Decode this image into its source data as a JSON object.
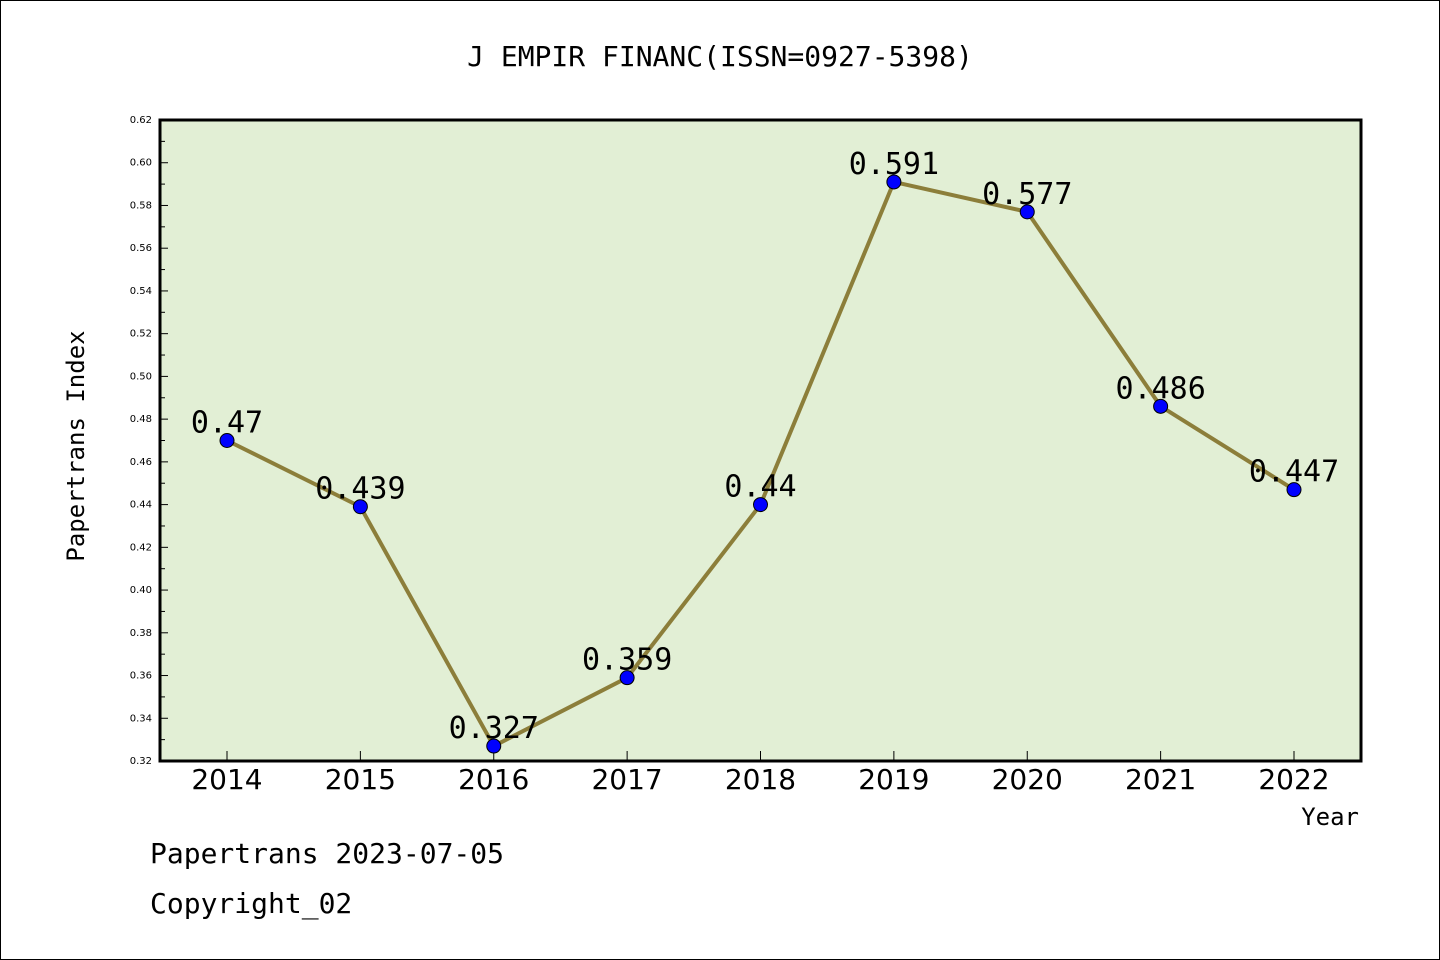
{
  "chart_data": {
    "type": "line",
    "title": "J EMPIR FINANC(ISSN=0927-5398)",
    "xlabel": "Year",
    "ylabel": "Papertrans Index",
    "categories": [
      "2014",
      "2015",
      "2016",
      "2017",
      "2018",
      "2019",
      "2020",
      "2021",
      "2022"
    ],
    "series": [
      {
        "values": [
          0.47,
          0.439,
          0.327,
          0.359,
          0.44,
          0.591,
          0.577,
          0.486,
          0.447
        ],
        "labels": [
          "0.47",
          "0.439",
          "0.327",
          "0.359",
          "0.44",
          "0.591",
          "0.577",
          "0.486",
          "0.447"
        ]
      }
    ],
    "ylim": [
      0.32,
      0.62
    ],
    "yticks": [
      "0.32",
      "0.34",
      "0.36",
      "0.38",
      "0.40",
      "0.42",
      "0.44",
      "0.46",
      "0.48",
      "0.50",
      "0.52",
      "0.54",
      "0.56",
      "0.58",
      "0.60",
      "0.62"
    ],
    "grid": false,
    "colors": {
      "plot_background": "#e2efd5",
      "line": "#8c7e3a",
      "marker": "#0000ff"
    }
  },
  "footer": {
    "line1": "Papertrans 2023-07-05",
    "line2": "Copyright_02"
  }
}
